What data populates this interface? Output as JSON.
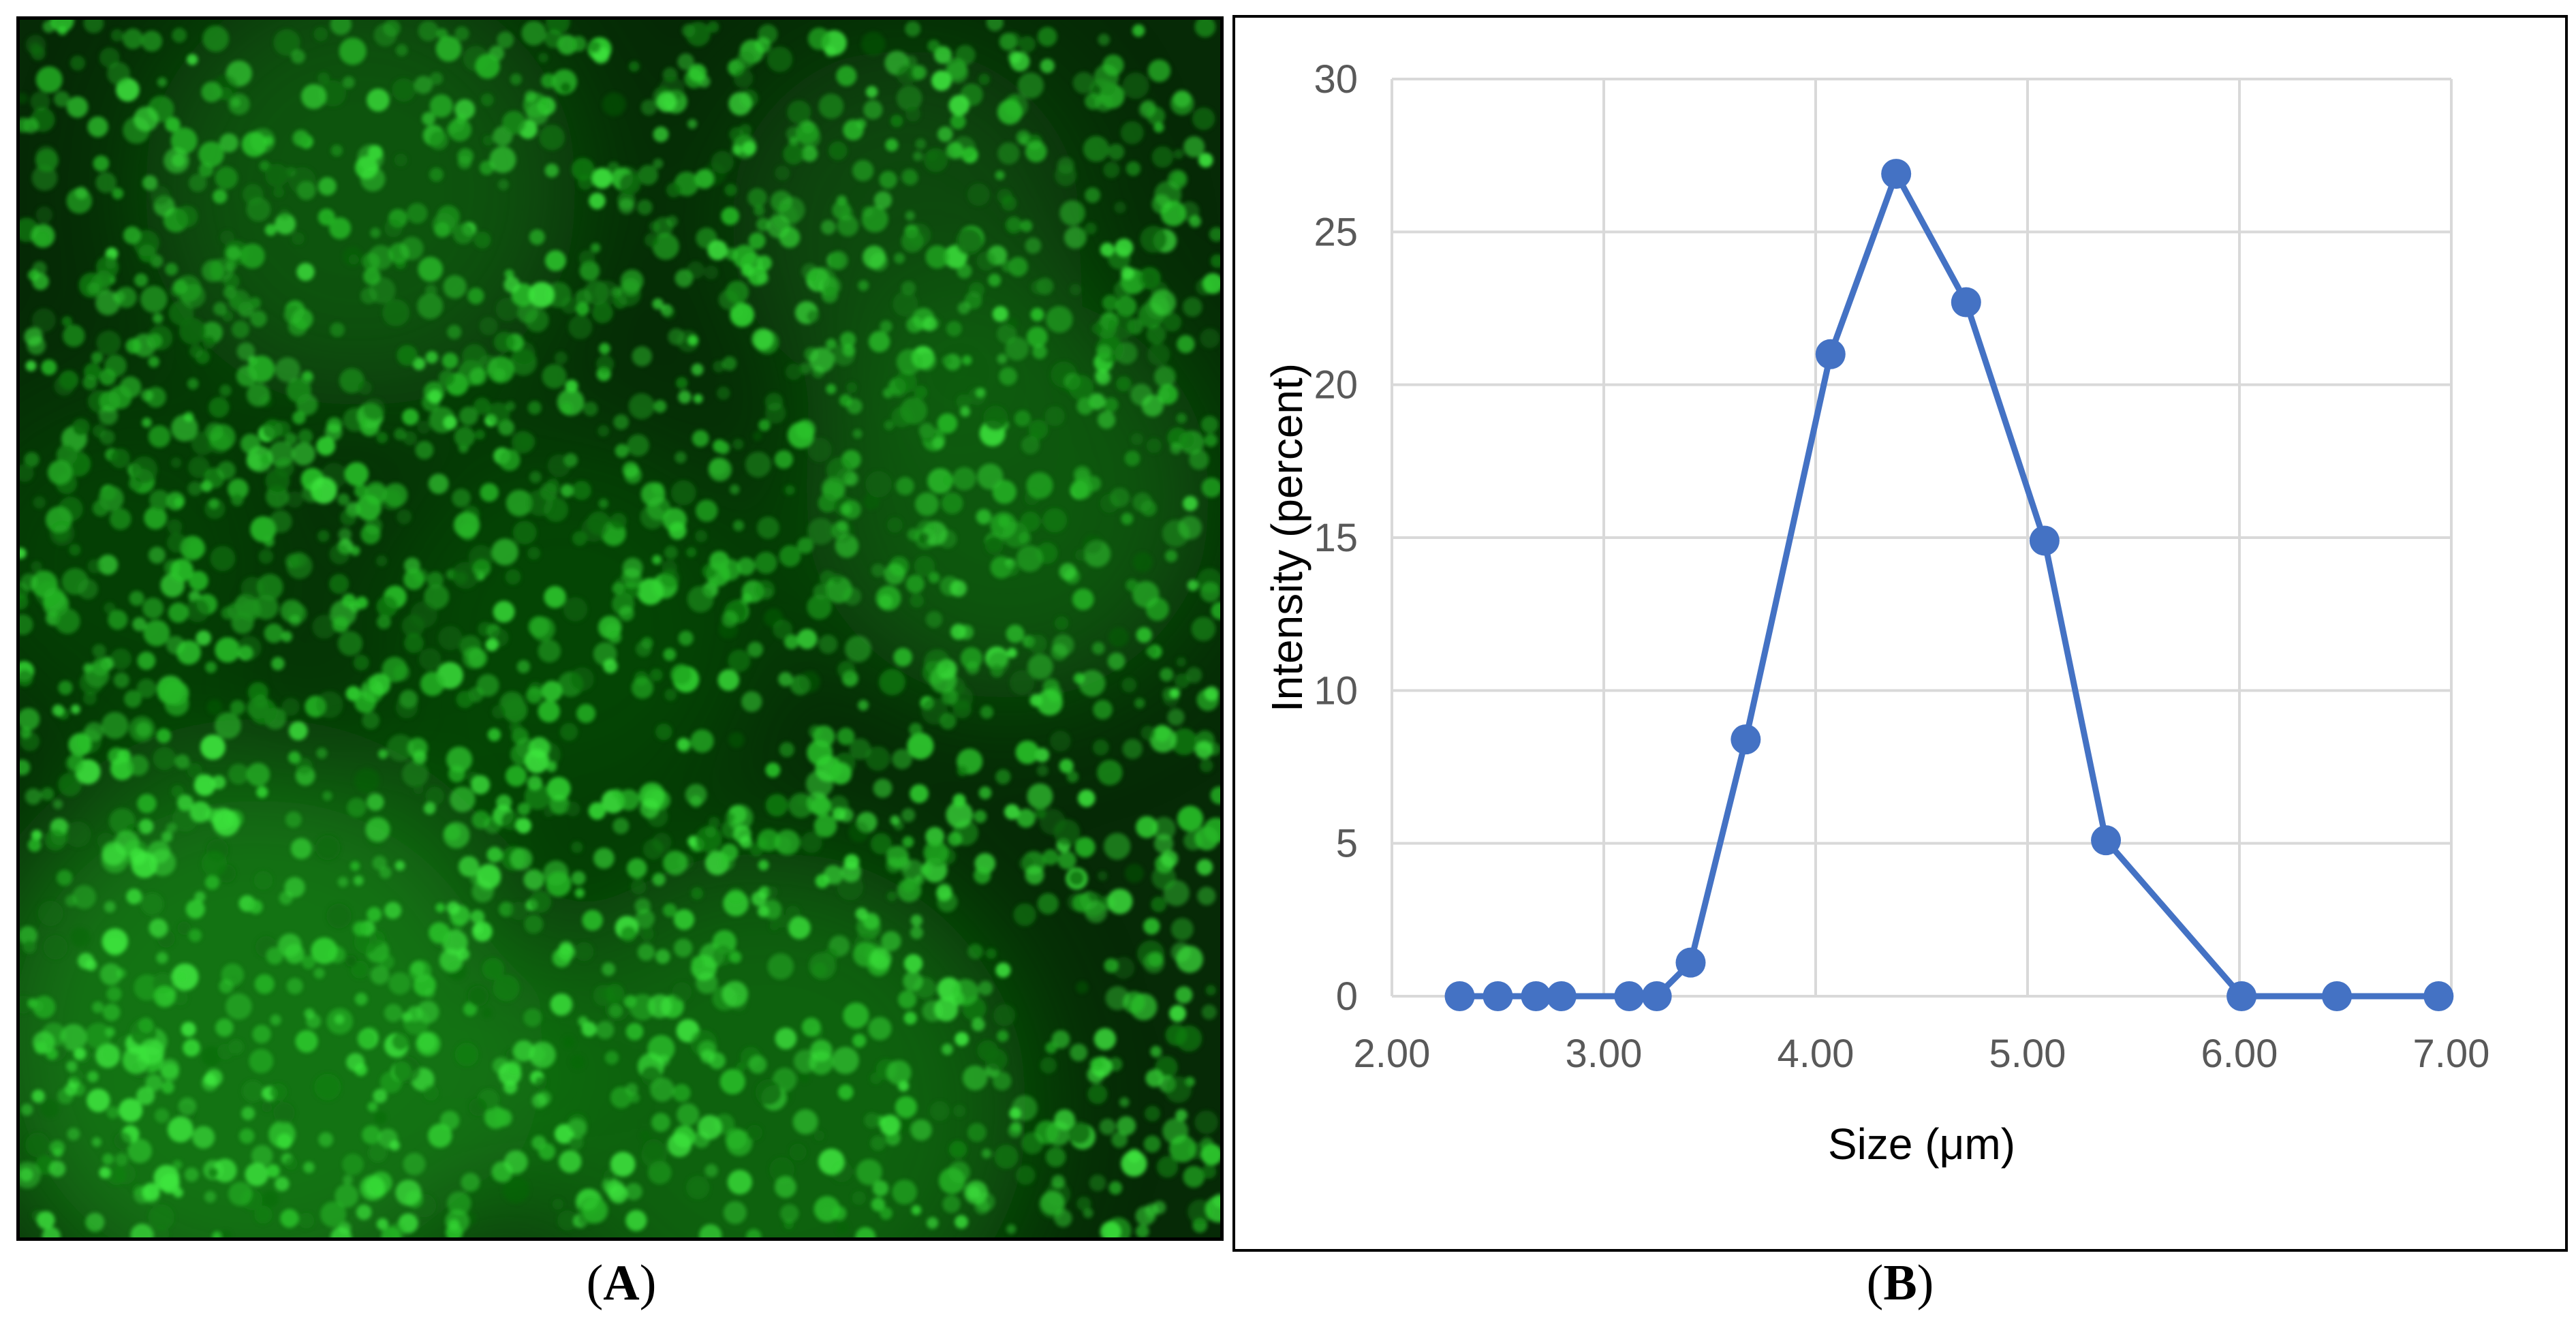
{
  "panels": {
    "a": {
      "caption_open": "(",
      "caption_letter": "A",
      "caption_close": ")"
    },
    "b": {
      "caption_open": "(",
      "caption_letter": "B",
      "caption_close": ")"
    }
  },
  "colors": {
    "series": "#4472c4",
    "grid": "#d9d9d9",
    "micrograph_base": "#062a06",
    "micrograph_cell": "#2bd42b"
  },
  "chart_data": {
    "type": "line",
    "title": "",
    "xlabel": "Size (μm)",
    "ylabel": "Intensity (percent)",
    "xlim": [
      2.0,
      7.0
    ],
    "ylim": [
      0,
      30
    ],
    "x_ticks": [
      "2.00",
      "3.00",
      "4.00",
      "5.00",
      "6.00",
      "7.00"
    ],
    "y_ticks": [
      "0",
      "5",
      "10",
      "15",
      "20",
      "25",
      "30"
    ],
    "grid": true,
    "markers": true,
    "series": [
      {
        "name": "Intensity",
        "x": [
          2.32,
          2.5,
          2.68,
          2.8,
          3.12,
          3.25,
          3.41,
          3.67,
          4.07,
          4.38,
          4.71,
          5.08,
          5.37,
          6.01,
          6.46,
          6.94
        ],
        "y": [
          0,
          0,
          0,
          0,
          0,
          0,
          1.1,
          8.4,
          21.0,
          26.9,
          22.7,
          14.9,
          5.1,
          0,
          0,
          0
        ]
      }
    ]
  }
}
